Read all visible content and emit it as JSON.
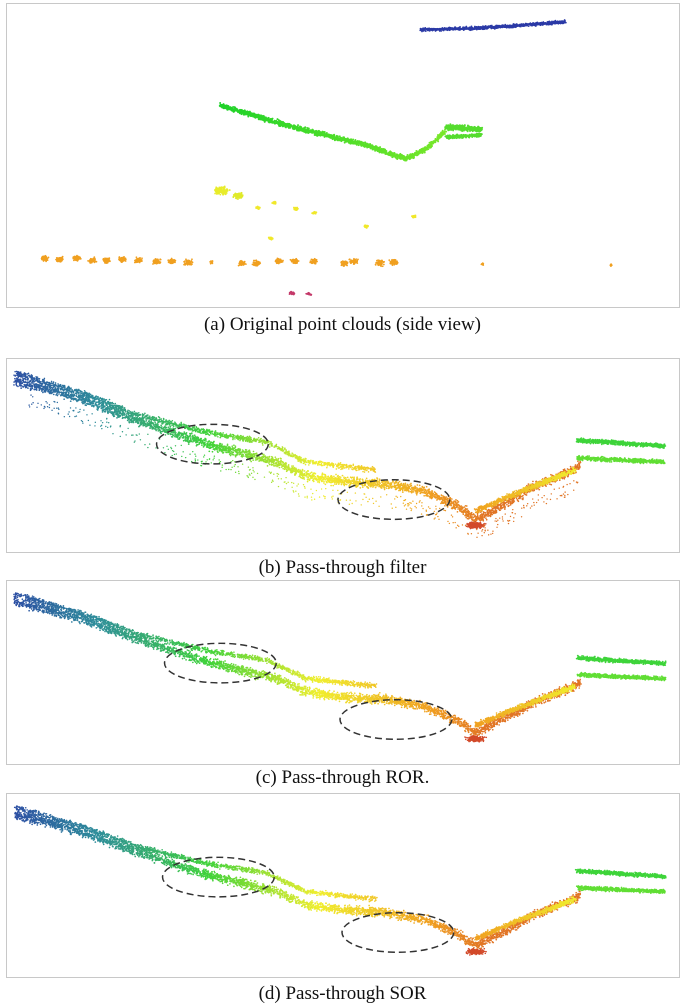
{
  "figure": {
    "panels": [
      {
        "id": "a",
        "caption": "(a) Original point clouds (side view)",
        "highlight_count": 0
      },
      {
        "id": "b",
        "caption": "(b) Pass-through filter",
        "highlight_count": 2
      },
      {
        "id": "c",
        "caption": "(c) Pass-through ROR",
        "caption_tail": ".",
        "highlight_count": 2
      },
      {
        "id": "d",
        "caption": "(d) Pass-through SOR",
        "highlight_count": 2
      }
    ],
    "colors": {
      "blue": "#2b3aa6",
      "teal": "#2e8e9a",
      "green": "#3fd23a",
      "yellow": "#f0ee2e",
      "orange": "#f0a020",
      "red": "#d24a2a",
      "magenta": "#c43a6a",
      "ellipse": "#333333"
    }
  }
}
